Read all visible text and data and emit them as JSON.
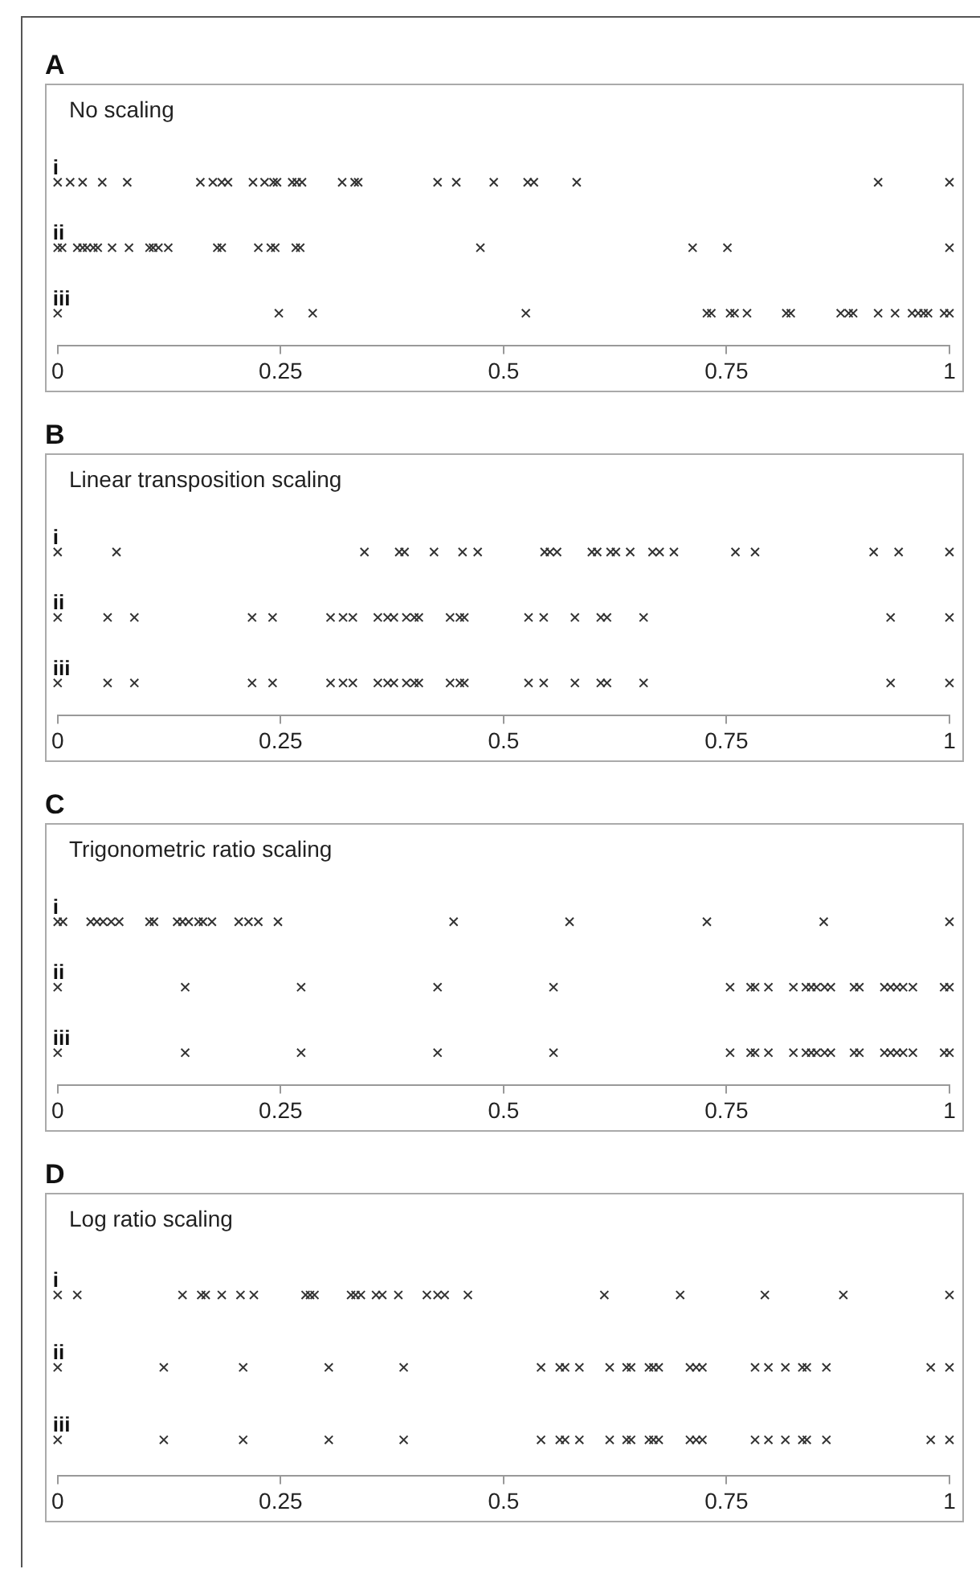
{
  "chart_data": [
    {
      "type": "scatter",
      "title": "A",
      "subtitle": "No scaling",
      "orientation": "horizontal",
      "categories": [
        "i",
        "ii",
        "iii"
      ],
      "xlim": [
        0,
        1
      ],
      "xticks": [
        0,
        0.25,
        0.5,
        0.75,
        1
      ],
      "tick_labels": "x",
      "grid": false,
      "marker": "cross",
      "legend": false,
      "series": [
        {
          "color": "#333333",
          "x": [
            "i",
            "i",
            "i",
            "i",
            "i",
            "i",
            "i",
            "i",
            "i",
            "i",
            "i",
            "i",
            "i",
            "i",
            "i",
            "i",
            "i",
            "i",
            "i",
            "i",
            "i",
            "i",
            "i",
            "i",
            "i",
            "i",
            "i"
          ],
          "values": [
            0,
            0.014,
            0.028,
            0.05,
            0.078,
            0.16,
            0.174,
            0.184,
            0.191,
            0.219,
            0.232,
            0.242,
            0.246,
            0.263,
            0.268,
            0.274,
            0.319,
            0.333,
            0.337,
            0.426,
            0.447,
            0.489,
            0.527,
            0.534,
            0.582,
            0.92,
            1
          ]
        },
        {
          "color": "#333333",
          "x": [
            "ii",
            "ii",
            "ii",
            "ii",
            "ii",
            "ii",
            "ii",
            "ii",
            "ii",
            "ii",
            "ii",
            "ii",
            "ii",
            "ii",
            "ii",
            "ii",
            "ii",
            "ii",
            "ii",
            "ii",
            "ii",
            "ii",
            "ii",
            "ii"
          ],
          "values": [
            0,
            0.005,
            0.022,
            0.028,
            0.033,
            0.04,
            0.045,
            0.061,
            0.08,
            0.103,
            0.107,
            0.113,
            0.124,
            0.179,
            0.184,
            0.225,
            0.239,
            0.244,
            0.267,
            0.272,
            0.474,
            0.712,
            0.751,
            1
          ]
        },
        {
          "color": "#333333",
          "x": [
            "iii",
            "iii",
            "iii",
            "iii",
            "iii",
            "iii",
            "iii",
            "iii",
            "iii",
            "iii",
            "iii",
            "iii",
            "iii",
            "iii",
            "iii",
            "iii",
            "iii",
            "iii",
            "iii",
            "iii",
            "iii",
            "iii"
          ],
          "values": [
            0,
            0.248,
            0.286,
            0.525,
            0.728,
            0.733,
            0.754,
            0.759,
            0.773,
            0.817,
            0.822,
            0.878,
            0.887,
            0.892,
            0.92,
            0.939,
            0.958,
            0.965,
            0.971,
            0.976,
            0.994,
            1
          ]
        }
      ]
    },
    {
      "type": "scatter",
      "title": "B",
      "subtitle": "Linear transposition scaling",
      "orientation": "horizontal",
      "categories": [
        "i",
        "ii",
        "iii"
      ],
      "xlim": [
        0,
        1
      ],
      "xticks": [
        0,
        0.25,
        0.5,
        0.75,
        1
      ],
      "tick_labels": "x",
      "grid": false,
      "marker": "cross",
      "legend": false,
      "series": [
        {
          "color": "#333333",
          "x": [
            "i",
            "i",
            "i",
            "i",
            "i",
            "i",
            "i",
            "i",
            "i",
            "i",
            "i",
            "i",
            "i",
            "i",
            "i",
            "i",
            "i",
            "i",
            "i",
            "i",
            "i",
            "i",
            "i",
            "i"
          ],
          "values": [
            0,
            0.066,
            0.344,
            0.383,
            0.389,
            0.422,
            0.454,
            0.471,
            0.546,
            0.552,
            0.56,
            0.599,
            0.605,
            0.62,
            0.626,
            0.642,
            0.667,
            0.675,
            0.691,
            0.76,
            0.782,
            0.915,
            0.943,
            1
          ]
        },
        {
          "color": "#333333",
          "x": [
            "ii",
            "ii",
            "ii",
            "ii",
            "ii",
            "ii",
            "ii",
            "ii",
            "ii",
            "ii",
            "ii",
            "ii",
            "ii",
            "ii",
            "ii",
            "ii",
            "ii",
            "ii",
            "ii",
            "ii",
            "ii",
            "ii",
            "ii",
            "ii",
            "ii"
          ],
          "values": [
            0,
            0.056,
            0.086,
            0.218,
            0.241,
            0.306,
            0.32,
            0.331,
            0.359,
            0.37,
            0.377,
            0.391,
            0.4,
            0.405,
            0.44,
            0.451,
            0.456,
            0.528,
            0.545,
            0.58,
            0.609,
            0.616,
            0.657,
            0.934,
            1
          ]
        },
        {
          "color": "#333333",
          "x": [
            "iii",
            "iii",
            "iii",
            "iii",
            "iii",
            "iii",
            "iii",
            "iii",
            "iii",
            "iii",
            "iii",
            "iii",
            "iii",
            "iii",
            "iii",
            "iii",
            "iii",
            "iii",
            "iii",
            "iii",
            "iii",
            "iii",
            "iii",
            "iii",
            "iii"
          ],
          "values": [
            0,
            0.056,
            0.086,
            0.218,
            0.241,
            0.306,
            0.32,
            0.331,
            0.359,
            0.37,
            0.377,
            0.391,
            0.4,
            0.405,
            0.44,
            0.451,
            0.456,
            0.528,
            0.545,
            0.58,
            0.609,
            0.616,
            0.657,
            0.934,
            1
          ]
        }
      ]
    },
    {
      "type": "scatter",
      "title": "C",
      "subtitle": "Trigonometric ratio scaling",
      "orientation": "horizontal",
      "categories": [
        "i",
        "ii",
        "iii"
      ],
      "xlim": [
        0,
        1
      ],
      "xticks": [
        0,
        0.25,
        0.5,
        0.75,
        1
      ],
      "tick_labels": "x",
      "grid": false,
      "marker": "cross",
      "legend": false,
      "series": [
        {
          "color": "#333333",
          "x": [
            "i",
            "i",
            "i",
            "i",
            "i",
            "i",
            "i",
            "i",
            "i",
            "i",
            "i",
            "i",
            "i",
            "i",
            "i",
            "i",
            "i",
            "i",
            "i",
            "i",
            "i",
            "i",
            "i",
            "i"
          ],
          "values": [
            0,
            0.006,
            0.037,
            0.044,
            0.051,
            0.06,
            0.069,
            0.103,
            0.108,
            0.134,
            0.14,
            0.147,
            0.158,
            0.163,
            0.173,
            0.203,
            0.214,
            0.225,
            0.247,
            0.444,
            0.574,
            0.728,
            0.859,
            1
          ]
        },
        {
          "color": "#333333",
          "x": [
            "ii",
            "ii",
            "ii",
            "ii",
            "ii",
            "ii",
            "ii",
            "ii",
            "ii",
            "ii",
            "ii",
            "ii",
            "ii",
            "ii",
            "ii",
            "ii",
            "ii",
            "ii",
            "ii",
            "ii",
            "ii",
            "ii",
            "ii",
            "ii"
          ],
          "values": [
            0,
            0.143,
            0.273,
            0.426,
            0.556,
            0.754,
            0.777,
            0.782,
            0.797,
            0.825,
            0.839,
            0.845,
            0.851,
            0.86,
            0.867,
            0.893,
            0.899,
            0.927,
            0.934,
            0.941,
            0.948,
            0.959,
            0.994,
            1
          ]
        },
        {
          "color": "#333333",
          "x": [
            "iii",
            "iii",
            "iii",
            "iii",
            "iii",
            "iii",
            "iii",
            "iii",
            "iii",
            "iii",
            "iii",
            "iii",
            "iii",
            "iii",
            "iii",
            "iii",
            "iii",
            "iii",
            "iii",
            "iii",
            "iii",
            "iii",
            "iii",
            "iii"
          ],
          "values": [
            0,
            0.143,
            0.273,
            0.426,
            0.556,
            0.754,
            0.777,
            0.782,
            0.797,
            0.825,
            0.839,
            0.845,
            0.851,
            0.86,
            0.867,
            0.893,
            0.899,
            0.927,
            0.934,
            0.941,
            0.948,
            0.959,
            0.994,
            1
          ]
        }
      ]
    },
    {
      "type": "scatter",
      "title": "D",
      "subtitle": "Log ratio scaling",
      "orientation": "horizontal",
      "categories": [
        "i",
        "ii",
        "iii"
      ],
      "xlim": [
        0,
        1
      ],
      "xticks": [
        0,
        0.25,
        0.5,
        0.75,
        1
      ],
      "tick_labels": "x",
      "grid": false,
      "marker": "cross",
      "legend": false,
      "series": [
        {
          "color": "#333333",
          "x": [
            "i",
            "i",
            "i",
            "i",
            "i",
            "i",
            "i",
            "i",
            "i",
            "i",
            "i",
            "i",
            "i",
            "i",
            "i",
            "i",
            "i",
            "i",
            "i",
            "i",
            "i",
            "i",
            "i",
            "i",
            "i",
            "i"
          ],
          "values": [
            0,
            0.022,
            0.14,
            0.161,
            0.166,
            0.184,
            0.205,
            0.22,
            0.278,
            0.283,
            0.288,
            0.329,
            0.334,
            0.34,
            0.357,
            0.364,
            0.382,
            0.414,
            0.426,
            0.434,
            0.46,
            0.613,
            0.698,
            0.793,
            0.881,
            1
          ]
        },
        {
          "color": "#333333",
          "x": [
            "ii",
            "ii",
            "ii",
            "ii",
            "ii",
            "ii",
            "ii",
            "ii",
            "ii",
            "ii",
            "ii",
            "ii",
            "ii",
            "ii",
            "ii",
            "ii",
            "ii",
            "ii",
            "ii",
            "ii",
            "ii",
            "ii",
            "ii",
            "ii",
            "ii",
            "ii"
          ],
          "values": [
            0,
            0.119,
            0.208,
            0.304,
            0.388,
            0.542,
            0.563,
            0.569,
            0.585,
            0.619,
            0.638,
            0.643,
            0.663,
            0.668,
            0.674,
            0.709,
            0.716,
            0.723,
            0.782,
            0.797,
            0.816,
            0.835,
            0.84,
            0.862,
            0.979,
            1
          ]
        },
        {
          "color": "#333333",
          "x": [
            "iii",
            "iii",
            "iii",
            "iii",
            "iii",
            "iii",
            "iii",
            "iii",
            "iii",
            "iii",
            "iii",
            "iii",
            "iii",
            "iii",
            "iii",
            "iii",
            "iii",
            "iii",
            "iii",
            "iii",
            "iii",
            "iii",
            "iii",
            "iii",
            "iii",
            "iii"
          ],
          "values": [
            0,
            0.119,
            0.208,
            0.304,
            0.388,
            0.542,
            0.563,
            0.569,
            0.585,
            0.619,
            0.638,
            0.643,
            0.663,
            0.668,
            0.674,
            0.709,
            0.716,
            0.723,
            0.782,
            0.797,
            0.816,
            0.835,
            0.84,
            0.862,
            0.979,
            1
          ]
        }
      ]
    }
  ]
}
